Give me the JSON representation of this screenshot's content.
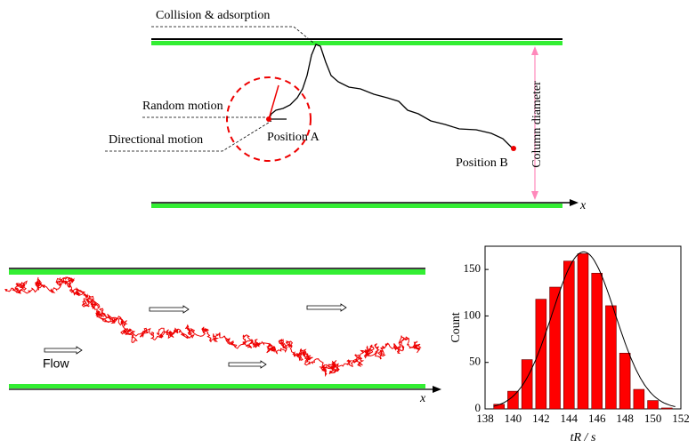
{
  "diagram": {
    "labels": {
      "collision": "Collision & adsorption",
      "random": "Random motion",
      "directional": "Directional motion",
      "position_a": "Position  A",
      "position_b": "Position  B",
      "column": "Column diameter",
      "x_top": "x",
      "flow": "Flow",
      "x_bottom": "x"
    }
  },
  "chart_data": {
    "type": "histogram",
    "ylabel": "Count",
    "xlabel": "tR / s",
    "bins": [
      138.5,
      139.5,
      140.5,
      141.5,
      142.5,
      143.5,
      144.5,
      145.5,
      146.5,
      147.5,
      148.5,
      149.5,
      150.5,
      151.5
    ],
    "values": [
      5,
      19,
      53,
      118,
      131,
      159,
      167,
      146,
      111,
      60,
      21,
      9,
      1
    ],
    "color": "#ff0000",
    "xlim": [
      138,
      152
    ],
    "xticks": [
      138,
      140,
      142,
      144,
      146,
      148,
      150,
      152
    ],
    "ylim": [
      0,
      175
    ],
    "yticks": [
      0,
      50,
      100,
      150
    ]
  }
}
